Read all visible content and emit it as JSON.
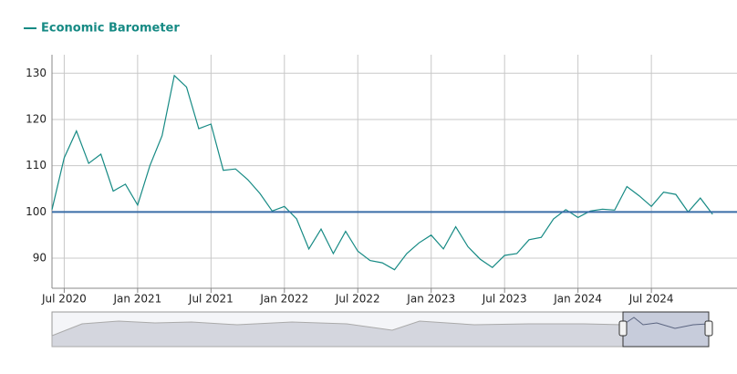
{
  "chart_data": {
    "type": "line",
    "title": "Economic Barometer",
    "x": [
      "2020-06",
      "2020-07",
      "2020-08",
      "2020-09",
      "2020-10",
      "2020-11",
      "2020-12",
      "2021-01",
      "2021-02",
      "2021-03",
      "2021-04",
      "2021-05",
      "2021-06",
      "2021-07",
      "2021-08",
      "2021-09",
      "2021-10",
      "2021-11",
      "2021-12",
      "2022-01",
      "2022-02",
      "2022-03",
      "2022-04",
      "2022-05",
      "2022-06",
      "2022-07",
      "2022-08",
      "2022-09",
      "2022-10",
      "2022-11",
      "2022-12",
      "2023-01",
      "2023-02",
      "2023-03",
      "2023-04",
      "2023-05",
      "2023-06",
      "2023-07",
      "2023-08",
      "2023-09",
      "2023-10",
      "2023-11",
      "2023-12",
      "2024-01",
      "2024-02",
      "2024-03",
      "2024-04",
      "2024-05",
      "2024-06",
      "2024-07",
      "2024-08",
      "2024-09",
      "2024-10",
      "2024-11",
      "2024-12"
    ],
    "series": [
      {
        "name": "Economic Barometer",
        "color": "#168a84",
        "values": [
          100.5,
          111.7,
          117.5,
          110.5,
          112.5,
          104.5,
          106,
          101.5,
          110,
          116.5,
          129.5,
          127,
          118,
          119,
          109,
          109.3,
          107,
          104,
          100.2,
          101.2,
          98.5,
          92,
          96.3,
          91,
          95.8,
          91.5,
          89.5,
          89,
          87.5,
          91,
          93.3,
          95,
          92,
          96.8,
          92.5,
          89.8,
          88,
          90.6,
          91,
          94,
          94.5,
          98.5,
          100.5,
          98.8,
          100.2,
          100.6,
          100.4,
          105.5,
          103.5,
          101.2,
          104.3,
          103.8,
          100,
          103,
          99.5
        ]
      }
    ],
    "xlim": [
      "2020-06",
      "2025-02"
    ],
    "xticks": [
      {
        "value": "2020-07",
        "label": "Jul 2020"
      },
      {
        "value": "2021-01",
        "label": "Jan 2021"
      },
      {
        "value": "2021-07",
        "label": "Jul 2021"
      },
      {
        "value": "2022-01",
        "label": "Jan 2022"
      },
      {
        "value": "2022-07",
        "label": "Jul 2022"
      },
      {
        "value": "2023-01",
        "label": "Jan 2023"
      },
      {
        "value": "2023-07",
        "label": "Jul 2023"
      },
      {
        "value": "2024-01",
        "label": "Jan 2024"
      },
      {
        "value": "2024-07",
        "label": "Jul 2024"
      }
    ],
    "ylim": [
      83.5,
      134
    ],
    "yticks": [
      90,
      100,
      110,
      120,
      130
    ],
    "reference_line": 100,
    "reference_color": "#3a6ea8",
    "grid": true
  }
}
